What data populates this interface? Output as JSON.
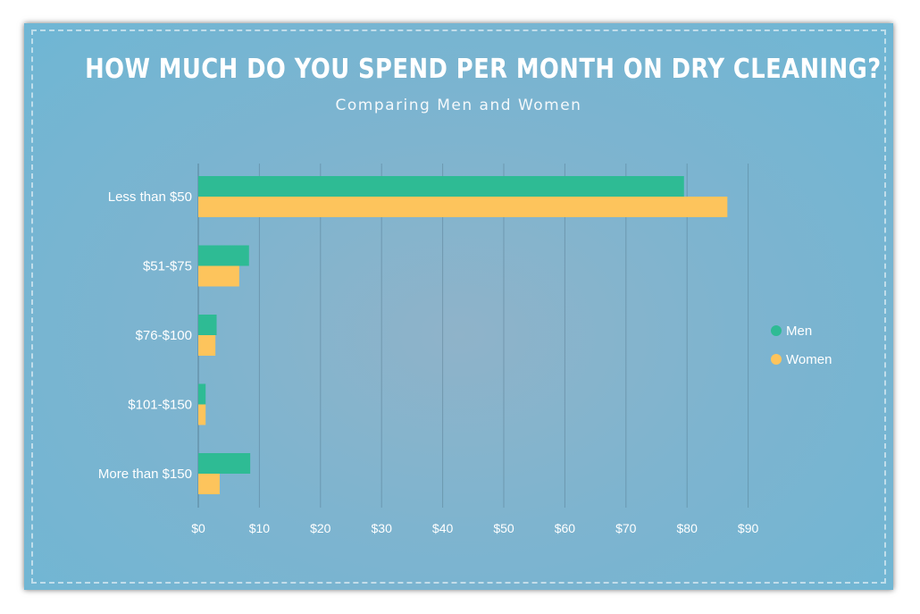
{
  "chart_data": {
    "type": "bar",
    "orientation": "horizontal",
    "title": "HOW MUCH DO YOU SPEND PER MONTH ON DRY CLEANING?",
    "subtitle": "Comparing Men and Women",
    "categories": [
      "Less than $50",
      "$51-$75",
      "$76-$100",
      "$101-$150",
      "More than $150"
    ],
    "series": [
      {
        "name": "Men",
        "color": "#2ebb94",
        "values": [
          79.5,
          8.3,
          3.0,
          1.2,
          8.5
        ]
      },
      {
        "name": "Women",
        "color": "#fdc45c",
        "values": [
          86.6,
          6.7,
          2.8,
          1.2,
          3.5
        ]
      }
    ],
    "xticks": [
      "$0",
      "$10",
      "$20",
      "$30",
      "$40",
      "$50",
      "$60",
      "$70",
      "$80",
      "$90"
    ],
    "xlim": [
      0,
      90
    ],
    "grid": true,
    "legend_position": "right"
  }
}
